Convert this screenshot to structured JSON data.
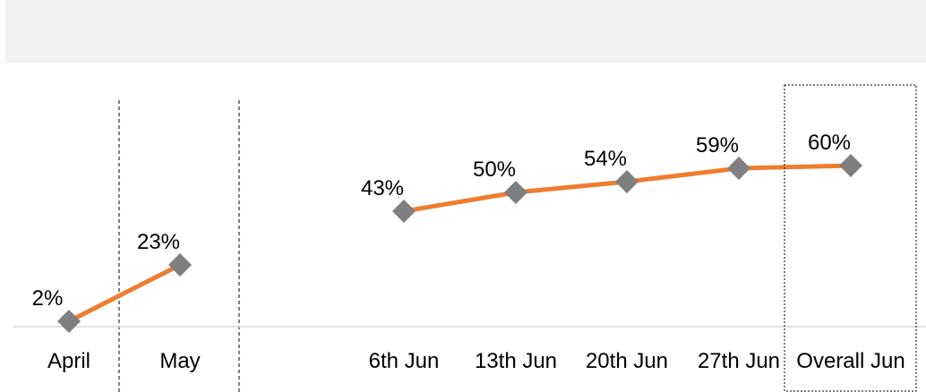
{
  "chart_data": {
    "type": "line",
    "title": "",
    "xlabel": "",
    "ylabel": "",
    "categories": [
      "April",
      "May",
      "6th Jun",
      "13th Jun",
      "20th Jun",
      "27th Jun",
      "Overall Jun"
    ],
    "segments": [
      {
        "categories": [
          "April",
          "May"
        ],
        "values": [
          2,
          23
        ]
      },
      {
        "categories": [
          "6th Jun",
          "13th Jun",
          "20th Jun",
          "27th Jun",
          "Overall Jun"
        ],
        "values": [
          43,
          50,
          54,
          59,
          60
        ]
      }
    ],
    "data_labels": [
      "2%",
      "23%",
      "43%",
      "50%",
      "54%",
      "59%",
      "60%"
    ],
    "value_format": "percent",
    "ylim": [
      0,
      100
    ],
    "grid": false,
    "legend": "none",
    "highlighted_category": "Overall Jun",
    "colors": {
      "line": "#ED7D31",
      "marker": "#7F7F7F",
      "axis": "#D9D9D9",
      "band": "#F2F2F2",
      "separator": "#000000"
    }
  }
}
